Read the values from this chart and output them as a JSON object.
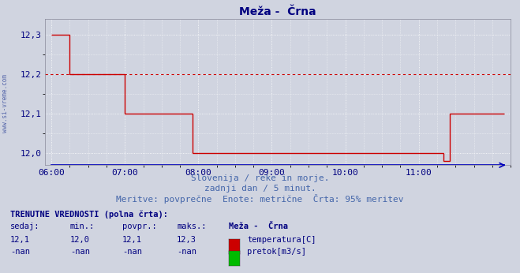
{
  "title": "Meža -  Črna",
  "title_color": "#000080",
  "bg_color": "#d0d4e0",
  "plot_bg_color": "#d0d4e0",
  "grid_color": "#ffffff",
  "line_color": "#cc0000",
  "avg_value": 12.2,
  "avg_line_color": "#cc0000",
  "bottom_line_color": "#0000bb",
  "yticks": [
    12.0,
    12.1,
    12.2,
    12.3
  ],
  "ytick_labels": [
    "12,0",
    "12,1",
    "12,2",
    "12,3"
  ],
  "ylim_low": 11.97,
  "ylim_high": 12.34,
  "xtick_pos": [
    0,
    12,
    24,
    36,
    48,
    60
  ],
  "xtick_labels": [
    "06:00",
    "07:00",
    "08:00",
    "09:00",
    "10:00",
    "11:00"
  ],
  "xmax": 74,
  "subtitle1": "Slovenija / reke in morje.",
  "subtitle2": "zadnji dan / 5 minut.",
  "subtitle3": "Meritve: povprečne  Enote: metrične  Črta: 95% meritev",
  "subtitle_color": "#4466aa",
  "legend_title": "TRENUTNE VREDNOSTI (polna črta):",
  "legend_headers": [
    "sedaj:",
    "min.:",
    "povpr.:",
    "maks.:",
    "Meža -  Črna"
  ],
  "legend_row1": [
    "12,1",
    "12,0",
    "12,1",
    "12,3",
    "temperatura[C]"
  ],
  "legend_row2": [
    "-nan",
    "-nan",
    "-nan",
    "-nan",
    "pretok[m3/s]"
  ],
  "legend_color1": "#cc0000",
  "legend_color2": "#00bb00",
  "left_label": "www.si-vreme.com",
  "left_label_color": "#5566aa",
  "text_color": "#000080"
}
